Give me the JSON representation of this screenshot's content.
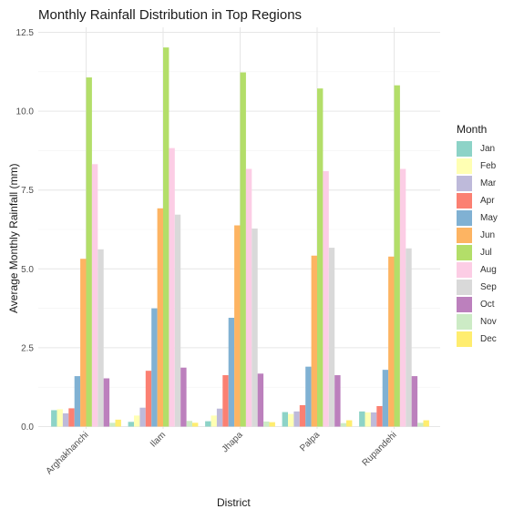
{
  "chart_data": {
    "type": "bar",
    "title": "Monthly Rainfall Distribution in Top Regions",
    "xlabel": "District",
    "ylabel": "Average Monthly Rainfall (mm)",
    "ylim": [
      0,
      12.5
    ],
    "yticks": [
      "0.0",
      "2.5",
      "5.0",
      "7.5",
      "10.0",
      "12.5"
    ],
    "grid": true,
    "legend_position": "right",
    "legend_title": "Month",
    "categories": [
      "Arghakhanchi",
      "Ilam",
      "Jhapa",
      "Palpa",
      "Rupandehi"
    ],
    "series": [
      {
        "name": "Jan",
        "color": "#8DD3C7",
        "values": [
          0.52,
          0.15,
          0.17,
          0.46,
          0.48
        ]
      },
      {
        "name": "Feb",
        "color": "#FFFFB3",
        "values": [
          0.55,
          0.35,
          0.35,
          0.4,
          0.45
        ]
      },
      {
        "name": "Mar",
        "color": "#BEBADA",
        "values": [
          0.42,
          0.6,
          0.57,
          0.48,
          0.45
        ]
      },
      {
        "name": "Apr",
        "color": "#FB8072",
        "values": [
          0.58,
          1.77,
          1.63,
          0.68,
          0.65
        ]
      },
      {
        "name": "May",
        "color": "#80B1D3",
        "values": [
          1.6,
          3.75,
          3.45,
          1.9,
          1.8
        ]
      },
      {
        "name": "Jun",
        "color": "#FDB462",
        "values": [
          5.32,
          6.92,
          6.38,
          5.42,
          5.39
        ]
      },
      {
        "name": "Jul",
        "color": "#B3DE69",
        "values": [
          11.07,
          12.02,
          11.23,
          10.72,
          10.82
        ]
      },
      {
        "name": "Aug",
        "color": "#FCCDE5",
        "values": [
          8.32,
          8.83,
          8.17,
          8.1,
          8.17
        ]
      },
      {
        "name": "Sep",
        "color": "#D9D9D9",
        "values": [
          5.62,
          6.72,
          6.28,
          5.67,
          5.65
        ]
      },
      {
        "name": "Oct",
        "color": "#BC80BD",
        "values": [
          1.53,
          1.87,
          1.68,
          1.63,
          1.6
        ]
      },
      {
        "name": "Nov",
        "color": "#CCEBC5",
        "values": [
          0.12,
          0.18,
          0.16,
          0.11,
          0.12
        ]
      },
      {
        "name": "Dec",
        "color": "#FFED6F",
        "values": [
          0.22,
          0.12,
          0.14,
          0.2,
          0.2
        ]
      }
    ]
  }
}
